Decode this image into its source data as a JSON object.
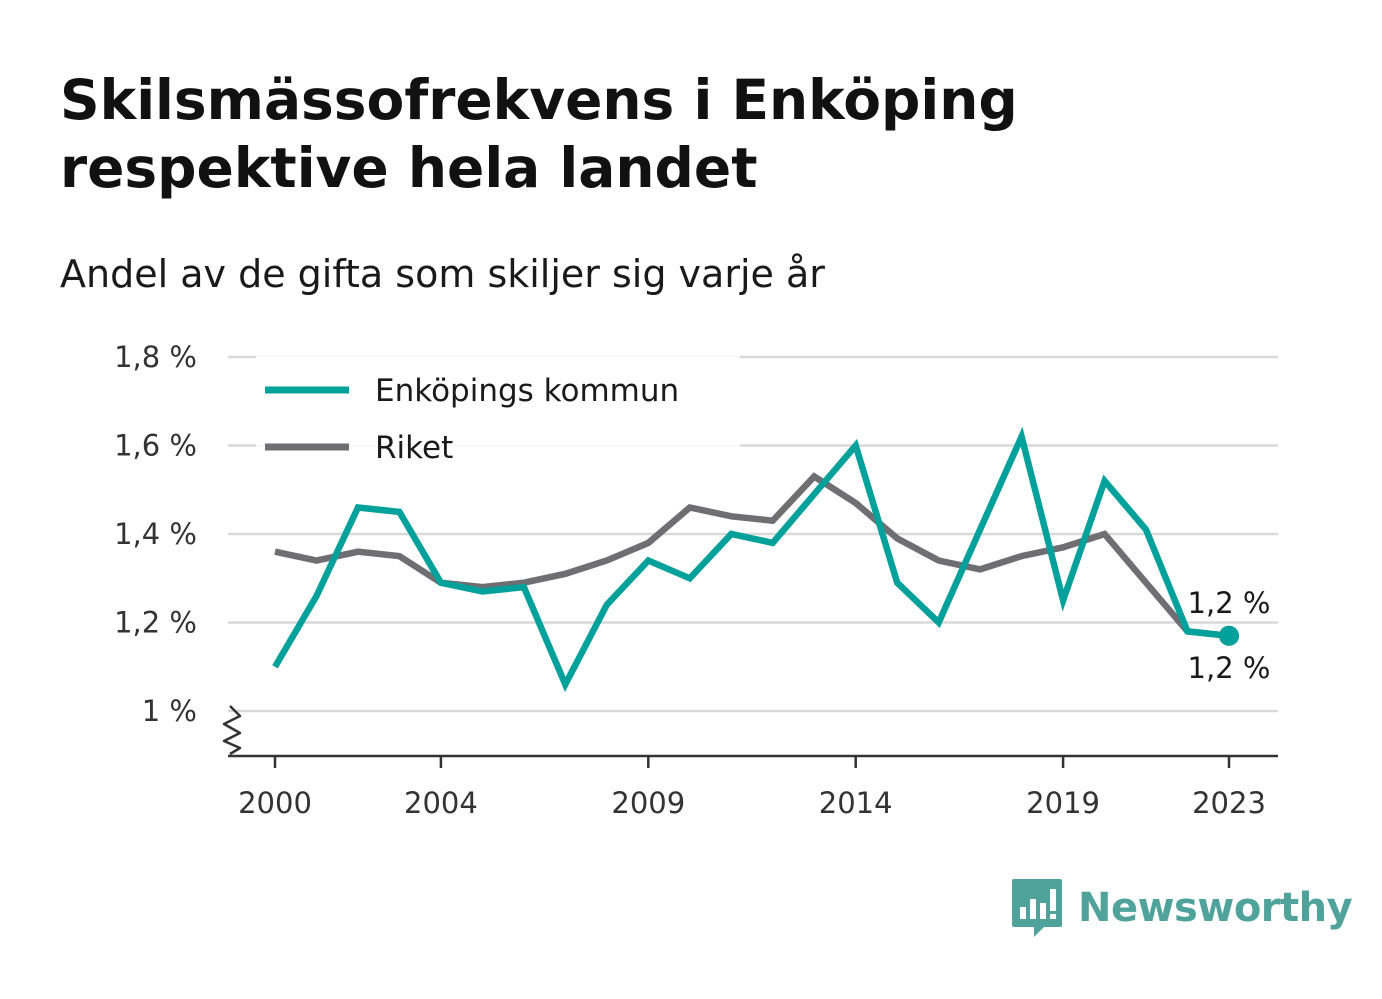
{
  "header": {
    "title": "Skilsmässofrekvens i Enköping respektive hela landet",
    "subtitle": "Andel av de gifta som skiljer sig varje år"
  },
  "brand": {
    "name": "Newsworthy",
    "color": "#4fa39a",
    "icon": "bar-chart-speech-bubble-icon"
  },
  "chart_data": {
    "type": "line",
    "x": [
      2000,
      2001,
      2002,
      2003,
      2004,
      2005,
      2006,
      2007,
      2008,
      2009,
      2010,
      2011,
      2012,
      2013,
      2014,
      2015,
      2016,
      2017,
      2018,
      2019,
      2020,
      2021,
      2022,
      2023
    ],
    "xticks": [
      2000,
      2004,
      2009,
      2014,
      2019,
      2023
    ],
    "xtick_labels": [
      "2000",
      "2004",
      "2009",
      "2014",
      "2019",
      "2023"
    ],
    "yticks": [
      1.0,
      1.2,
      1.4,
      1.6,
      1.8
    ],
    "ytick_labels": [
      "1 %",
      "1,2 %",
      "1,4 %",
      "1,6 %",
      "1,8 %"
    ],
    "ylim": [
      0.9,
      1.8
    ],
    "axis_break": true,
    "grid": "horizontal",
    "legend": "top-left",
    "series": [
      {
        "name": "Enköpings kommun",
        "color": "#00a19a",
        "values": [
          1.1,
          1.26,
          1.46,
          1.45,
          1.29,
          1.27,
          1.28,
          1.06,
          1.24,
          1.34,
          1.3,
          1.4,
          1.38,
          1.49,
          1.6,
          1.29,
          1.2,
          1.41,
          1.62,
          1.25,
          1.52,
          1.41,
          1.18,
          1.17
        ],
        "end_label": "1,2 %",
        "end_label_position": "above"
      },
      {
        "name": "Riket",
        "color": "#6e6e73",
        "values": [
          1.36,
          1.34,
          1.36,
          1.35,
          1.29,
          1.28,
          1.29,
          1.31,
          1.34,
          1.38,
          1.46,
          1.44,
          1.43,
          1.53,
          1.47,
          1.39,
          1.34,
          1.32,
          1.35,
          1.37,
          1.4,
          1.29,
          1.18,
          1.17
        ],
        "end_label": "1,2 %",
        "end_label_position": "below"
      }
    ]
  }
}
